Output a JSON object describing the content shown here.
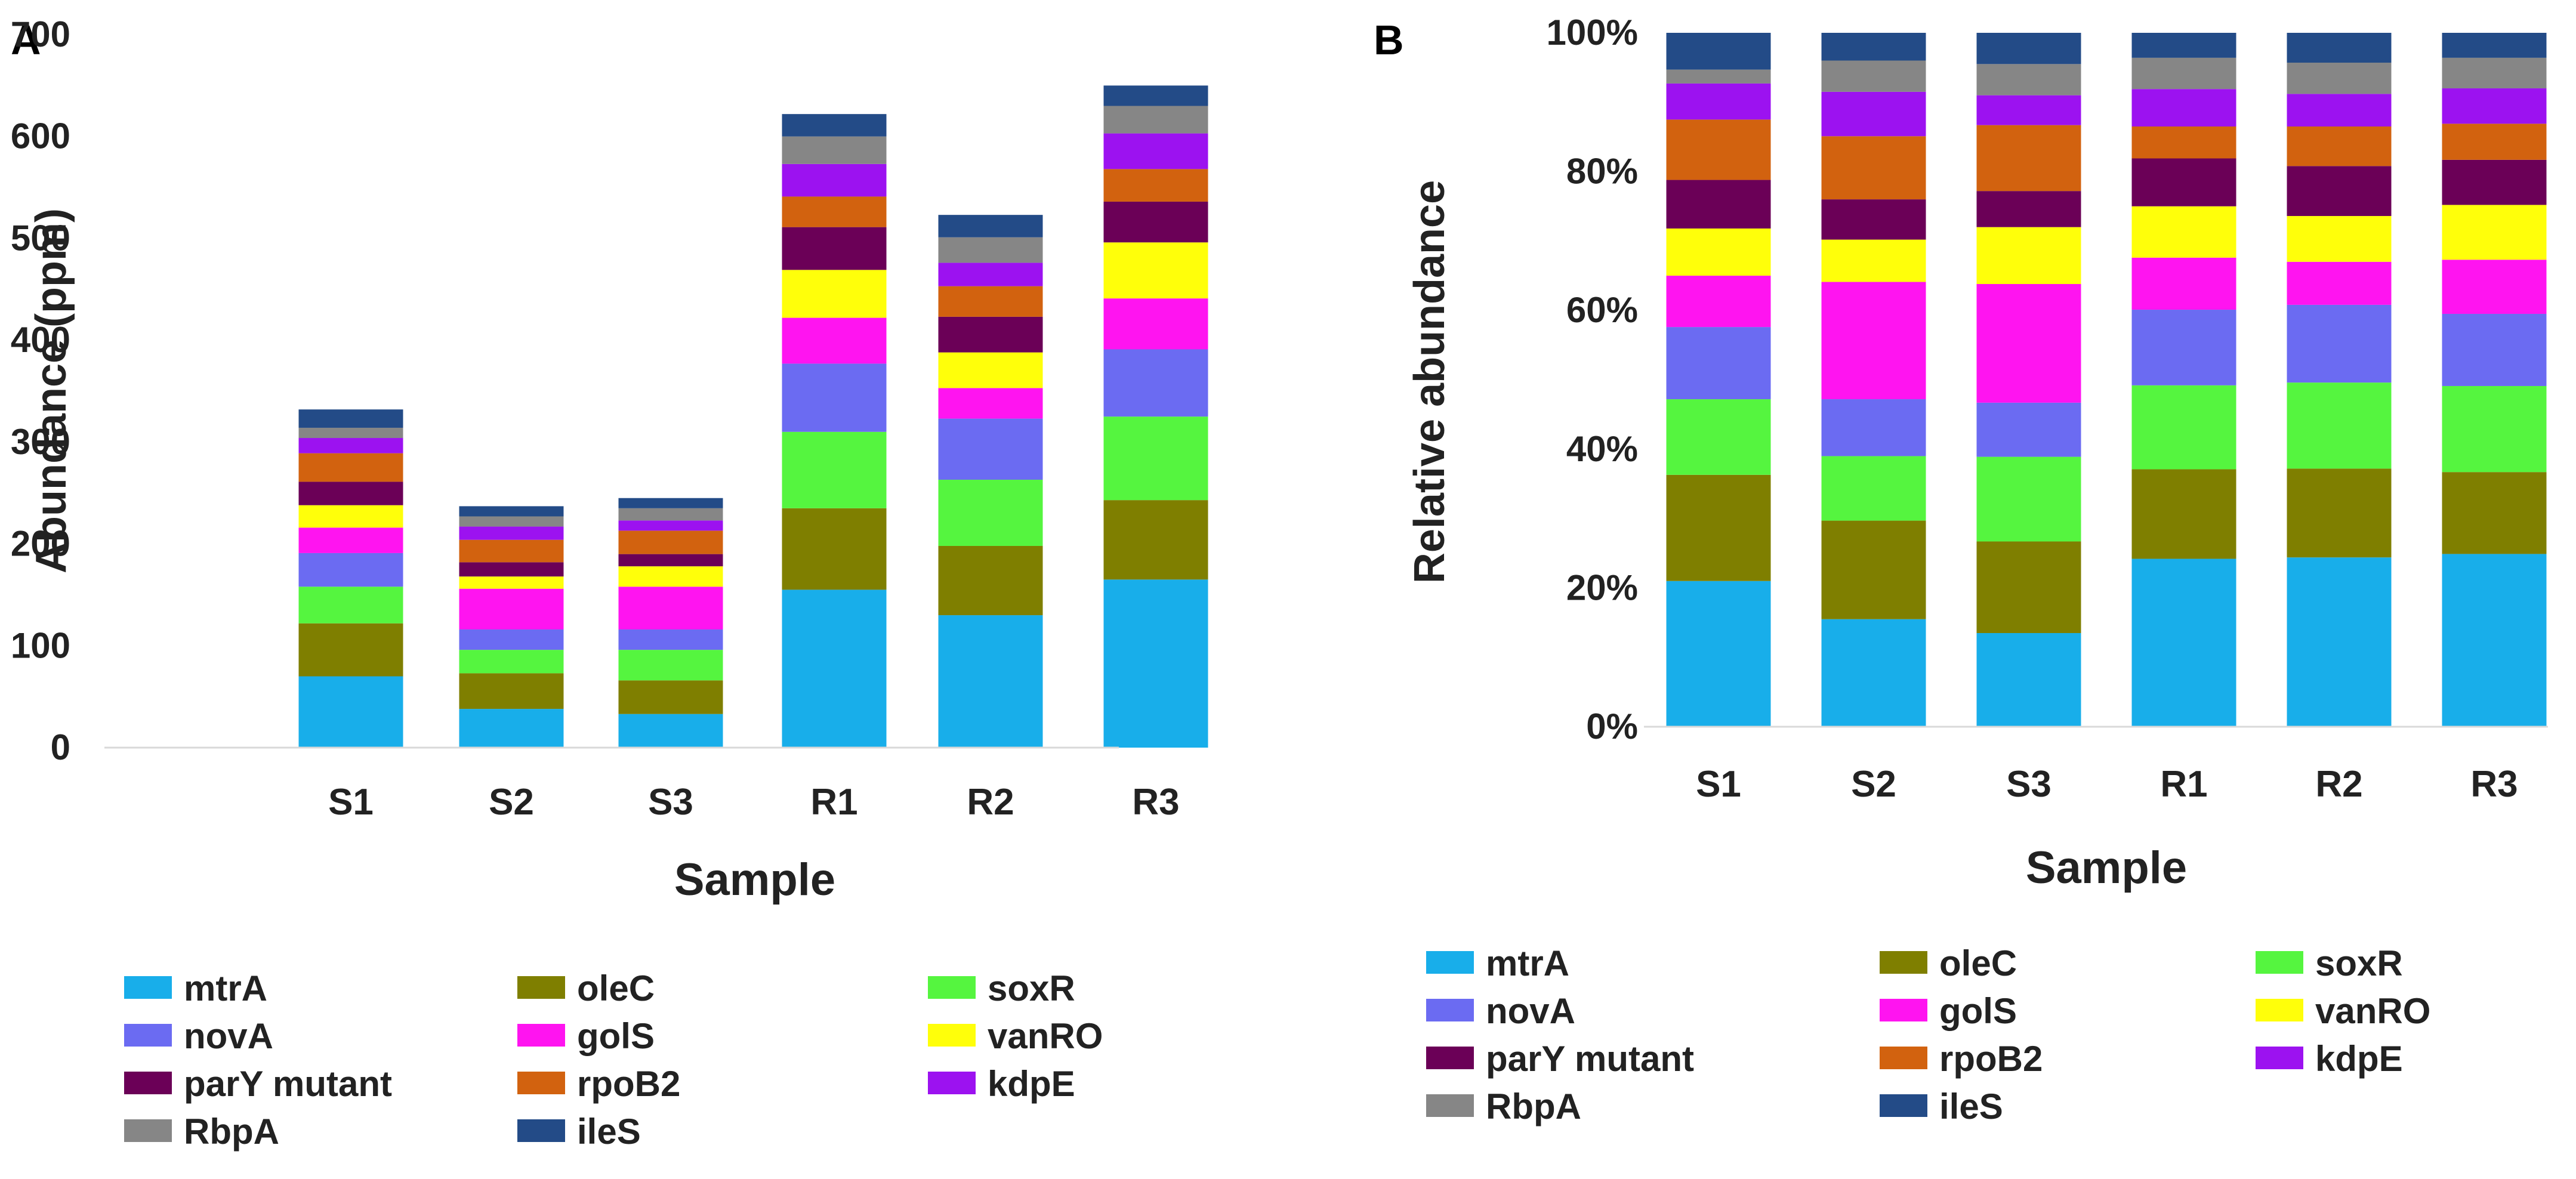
{
  "panels": {
    "a_letter": "A",
    "b_letter": "B"
  },
  "chart_data": [
    {
      "type": "bar",
      "stacked": true,
      "panel": "A",
      "title": "",
      "xlabel": "Sample",
      "ylabel": "Abundance (ppm)",
      "ylim": [
        0,
        700
      ],
      "yticks": [
        0,
        100,
        200,
        300,
        400,
        500,
        600,
        700
      ],
      "ytick_labels": [
        "0",
        "100",
        "200",
        "300",
        "400",
        "500",
        "600",
        "700"
      ],
      "categories": [
        "S1",
        "S2",
        "S3",
        "R1",
        "R2",
        "R3"
      ],
      "series": [
        {
          "name": "mtrA",
          "color": "#18AEEA",
          "values": [
            70,
            38,
            33,
            155,
            130,
            165
          ]
        },
        {
          "name": "oleC",
          "color": "#7F7F00",
          "values": [
            52,
            35,
            33,
            80,
            68,
            78
          ]
        },
        {
          "name": "soxR",
          "color": "#55F53F",
          "values": [
            36,
            23,
            30,
            75,
            65,
            82
          ]
        },
        {
          "name": "novA",
          "color": "#6B6BF2",
          "values": [
            33,
            20,
            20,
            67,
            60,
            66
          ]
        },
        {
          "name": "golS",
          "color": "#FF14F0",
          "values": [
            25,
            40,
            42,
            45,
            30,
            50
          ]
        },
        {
          "name": "vanRO",
          "color": "#FFFF0A",
          "values": [
            22,
            12,
            20,
            47,
            35,
            55
          ]
        },
        {
          "name": "parY mutant",
          "color": "#6B0057",
          "values": [
            23,
            14,
            12,
            42,
            35,
            40
          ]
        },
        {
          "name": "rpoB2",
          "color": "#D2620F",
          "values": [
            28,
            22,
            23,
            30,
            30,
            32
          ]
        },
        {
          "name": "kdpE",
          "color": "#9C12F0",
          "values": [
            15,
            13,
            10,
            32,
            23,
            35
          ]
        },
        {
          "name": "RbpA",
          "color": "#868686",
          "values": [
            10,
            10,
            12,
            27,
            25,
            27
          ]
        },
        {
          "name": "ileS",
          "color": "#234B87",
          "values": [
            18,
            10,
            10,
            22,
            22,
            20
          ]
        }
      ]
    },
    {
      "type": "bar",
      "stacked": true,
      "panel": "B",
      "title": "",
      "xlabel": "Sample",
      "ylabel": "Relative abundance",
      "ylim": [
        0,
        100
      ],
      "yticks": [
        0,
        20,
        40,
        60,
        80,
        100
      ],
      "ytick_labels": [
        "0%",
        "20%",
        "40%",
        "60%",
        "80%",
        "100%"
      ],
      "categories": [
        "S1",
        "S2",
        "S3",
        "R1",
        "R2",
        "R3"
      ],
      "series": [
        {
          "name": "mtrA",
          "color": "#18AEEA",
          "values": [
            21,
            15.5,
            13.5,
            24.2,
            24.4,
            24.9
          ]
        },
        {
          "name": "oleC",
          "color": "#7F7F00",
          "values": [
            15.3,
            14.2,
            13.2,
            12.9,
            12.8,
            11.8
          ]
        },
        {
          "name": "soxR",
          "color": "#55F53F",
          "values": [
            10.9,
            9.3,
            12.2,
            12.1,
            12.4,
            12.4
          ]
        },
        {
          "name": "novA",
          "color": "#6B6BF2",
          "values": [
            10.4,
            8.2,
            7.8,
            10.9,
            11.2,
            10.4
          ]
        },
        {
          "name": "golS",
          "color": "#FF14F0",
          "values": [
            7.4,
            16.9,
            17.1,
            7.5,
            6.2,
            7.8
          ]
        },
        {
          "name": "vanRO",
          "color": "#FFFF0A",
          "values": [
            6.8,
            6.1,
            8.2,
            7.4,
            6.6,
            7.9
          ]
        },
        {
          "name": "parY mutant",
          "color": "#6B0057",
          "values": [
            7,
            5.8,
            5.2,
            6.9,
            7.2,
            6.5
          ]
        },
        {
          "name": "rpoB2",
          "color": "#D2620F",
          "values": [
            8.7,
            9.1,
            9.5,
            4.6,
            5.7,
            5.2
          ]
        },
        {
          "name": "kdpE",
          "color": "#9C12F0",
          "values": [
            5.2,
            6.4,
            4.3,
            5.4,
            4.7,
            5.1
          ]
        },
        {
          "name": "RbpA",
          "color": "#868686",
          "values": [
            2,
            4.5,
            4.5,
            4.5,
            4.5,
            4.4
          ]
        },
        {
          "name": "ileS",
          "color": "#234B87",
          "values": [
            5.3,
            4,
            4.5,
            3.6,
            4.3,
            3.6
          ]
        }
      ]
    }
  ]
}
